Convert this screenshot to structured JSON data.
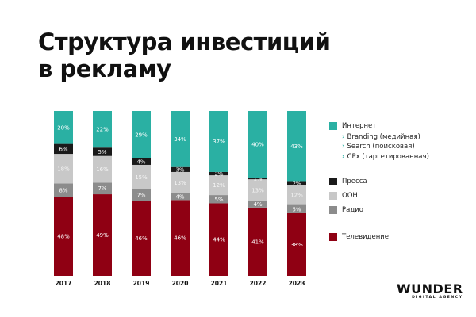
{
  "title_line1": "Структура инвестиций",
  "title_line2": "в рекламу",
  "chart_data": {
    "type": "bar",
    "stacked": true,
    "normalized": true,
    "categories": [
      "2017",
      "2018",
      "2019",
      "2020",
      "2021",
      "2022",
      "2023"
    ],
    "series": [
      {
        "name": "Телевидение",
        "color": "#8f0013",
        "values": [
          48,
          49,
          46,
          46,
          44,
          41,
          38
        ]
      },
      {
        "name": "Радио",
        "color": "#8c8c8c",
        "values": [
          8,
          7,
          7,
          4,
          5,
          4,
          5
        ]
      },
      {
        "name": "OOH",
        "color": "#c8c8c8",
        "values": [
          18,
          16,
          15,
          13,
          12,
          13,
          12
        ]
      },
      {
        "name": "Пресса",
        "color": "#1a1a1a",
        "values": [
          6,
          5,
          4,
          3,
          2,
          1,
          2
        ]
      },
      {
        "name": "Интернет",
        "color": "#2ab0a3",
        "values": [
          20,
          22,
          29,
          34,
          37,
          40,
          43
        ]
      }
    ],
    "value_suffix": "%",
    "legend_position": "right",
    "grid": false
  },
  "legend": {
    "internet": "Интернет",
    "internet_sub": [
      "Branding (медийная)",
      "Search (поисковая)",
      "CPx (таргетированная)"
    ],
    "press": "Пресса",
    "ooh": "OOH",
    "radio": "Радио",
    "tv": "Телевидение"
  },
  "logo": {
    "main": "WUNDER",
    "sub": "DIGITAL AGENCY"
  }
}
